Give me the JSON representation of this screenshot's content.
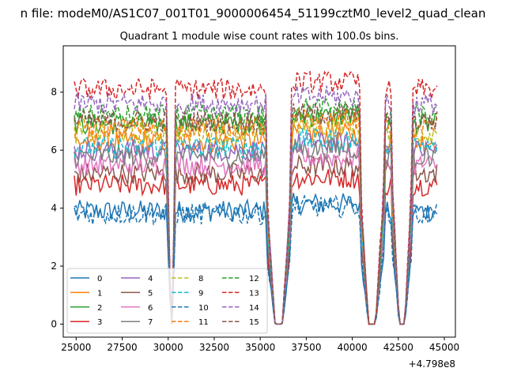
{
  "figure": {
    "suptitle": "n file: modeM0/AS1C07_001T01_9000006454_51199cztM0_level2_quad_clean",
    "offset_label": "+4.798e8"
  },
  "chart_data": {
    "type": "line",
    "title": "Quadrant 1 module wise count rates with 100.0s bins.",
    "xlabel": "",
    "ylabel": "",
    "xlim": [
      24300,
      45600
    ],
    "ylim": [
      -0.45,
      9.6
    ],
    "x_offset": 479800000,
    "x_ticks": [
      25000,
      27500,
      30000,
      32500,
      35000,
      37500,
      40000,
      42500,
      45000
    ],
    "x_tick_labels": [
      "25000",
      "27500",
      "30000",
      "32500",
      "35000",
      "37500",
      "40000",
      "42500",
      "45000"
    ],
    "y_ticks": [
      0,
      2,
      4,
      6,
      8
    ],
    "y_tick_labels": [
      "0",
      "2",
      "4",
      "6",
      "8"
    ],
    "legend_position": "lower-left",
    "legend_columns": 4,
    "segments": [
      {
        "start": 24900,
        "end": 29950
      },
      {
        "start": 30400,
        "end": 35300
      },
      {
        "start": 36700,
        "end": 40400
      },
      {
        "start": 41750,
        "end": 42150
      },
      {
        "start": 43250,
        "end": 44600
      }
    ],
    "dips": [
      {
        "start": 30000,
        "end": 30350,
        "level": 0.0
      },
      {
        "start": 35350,
        "end": 36650,
        "level": 0.0
      },
      {
        "start": 40450,
        "end": 41700,
        "level": 0.0
      },
      {
        "start": 42200,
        "end": 43200,
        "level": 0.0
      }
    ],
    "series": [
      {
        "name": "0",
        "level": 3.9,
        "color": "#1f77b4",
        "dash": "solid"
      },
      {
        "name": "1",
        "level": 6.3,
        "color": "#ff7f0e",
        "dash": "solid"
      },
      {
        "name": "2",
        "level": 6.9,
        "color": "#2ca02c",
        "dash": "solid"
      },
      {
        "name": "3",
        "level": 4.8,
        "color": "#d62728",
        "dash": "solid"
      },
      {
        "name": "4",
        "level": 6.0,
        "color": "#9467bd",
        "dash": "solid"
      },
      {
        "name": "5",
        "level": 5.2,
        "color": "#8c564b",
        "dash": "solid"
      },
      {
        "name": "6",
        "level": 5.5,
        "color": "#e377c2",
        "dash": "solid"
      },
      {
        "name": "7",
        "level": 5.8,
        "color": "#7f7f7f",
        "dash": "solid"
      },
      {
        "name": "8",
        "level": 6.6,
        "color": "#bcbd22",
        "dash": "dashed"
      },
      {
        "name": "9",
        "level": 6.1,
        "color": "#17becf",
        "dash": "dashed"
      },
      {
        "name": "10",
        "level": 3.8,
        "color": "#1f77b4",
        "dash": "dashed"
      },
      {
        "name": "11",
        "level": 6.8,
        "color": "#ff7f0e",
        "dash": "dashed"
      },
      {
        "name": "12",
        "level": 7.2,
        "color": "#2ca02c",
        "dash": "dashed"
      },
      {
        "name": "13",
        "level": 8.1,
        "color": "#d62728",
        "dash": "dashed"
      },
      {
        "name": "14",
        "level": 7.6,
        "color": "#9467bd",
        "dash": "dashed"
      },
      {
        "name": "15",
        "level": 7.0,
        "color": "#8c564b",
        "dash": "dashed"
      }
    ]
  }
}
